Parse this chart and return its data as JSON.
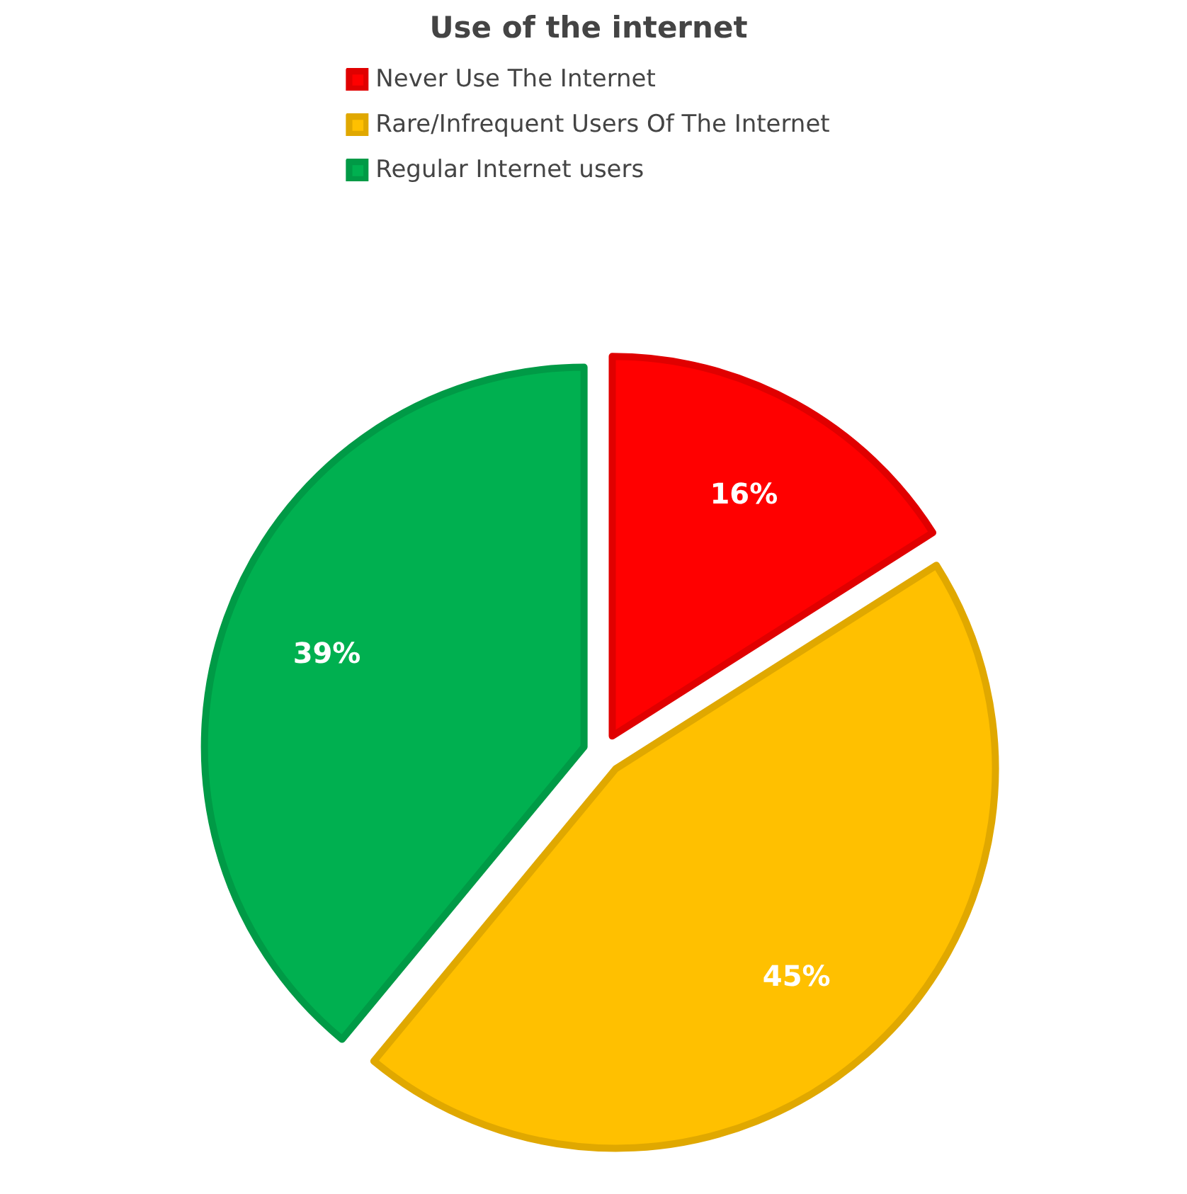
{
  "chart_data": {
    "type": "pie",
    "title": "Use of the internet",
    "categories": [
      "Never Use The Internet",
      "Rare/Infrequent Users Of The Internet",
      "Regular Internet users"
    ],
    "values": [
      16,
      45,
      39
    ],
    "colors": [
      "#ff0000",
      "#ffc000",
      "#00b050"
    ],
    "value_labels": [
      "16%",
      "45%",
      "39%"
    ],
    "legend": "top"
  }
}
